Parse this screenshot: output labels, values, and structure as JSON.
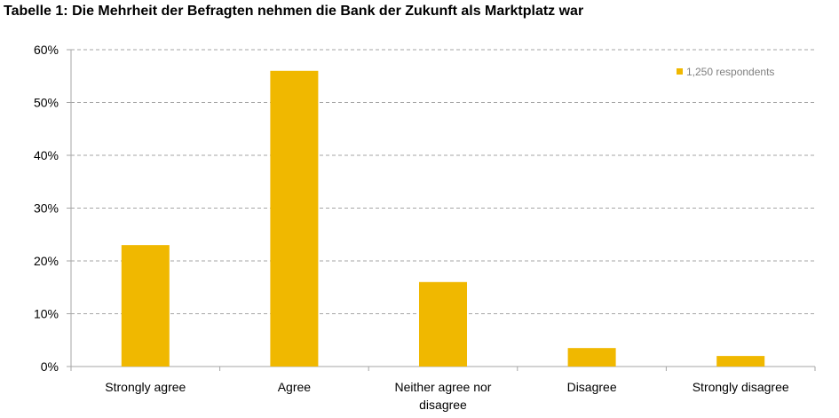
{
  "colors": {
    "bar": "#f0b800",
    "grid": "#a6a6a6",
    "axis": "#a6a6a6",
    "legend_text": "#808080"
  },
  "chart_data": {
    "type": "bar",
    "title": "Tabelle 1: Die Mehrheit der Befragten nehmen die Bank der Zukunft als Marktplatz war",
    "categories": [
      "Strongly agree",
      "Agree",
      "Neither agree nor disagree",
      "Disagree",
      "Strongly disagree"
    ],
    "series": [
      {
        "name": "1,250 respondents",
        "values": [
          23,
          56,
          16,
          3.5,
          2
        ]
      }
    ],
    "y_unit": "%",
    "ylim": [
      0,
      60
    ],
    "yticks": [
      0,
      10,
      20,
      30,
      40,
      50,
      60
    ],
    "ytick_labels": [
      "0%",
      "10%",
      "20%",
      "30%",
      "40%",
      "50%",
      "60%"
    ],
    "grid": true,
    "grid_style": "dashed",
    "legend_position": "top-right"
  }
}
